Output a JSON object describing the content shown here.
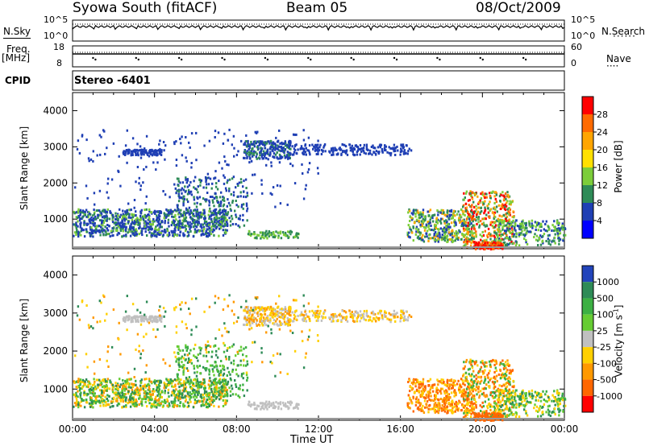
{
  "header": {
    "station": "Syowa South (fitACF)",
    "beam": "Beam 05",
    "date": "08/Oct/2009"
  },
  "top_panels": {
    "nsky_label": "N.Sky",
    "nsky_ticks": [
      "10^5",
      "10^0"
    ],
    "nsearch_label": "N.Search",
    "nsearch_ticks": [
      "10^5",
      "10^0"
    ],
    "freq_label_1": "Freq.",
    "freq_label_2": "[MHz]",
    "freq_ticks": [
      "18",
      "8"
    ],
    "nave_label": "Nave",
    "nave_ticks": [
      "60",
      "0"
    ],
    "cpid_label": "CPID",
    "cpid_value": "Stereo -6401"
  },
  "chart_data": [
    {
      "type": "heatmap",
      "quantity": "Power",
      "ylabel": "Slant Range [km]",
      "yticks": [
        "4000",
        "3000",
        "2000",
        "1000"
      ],
      "ylim": [
        180,
        4500
      ],
      "xlim_hours": [
        0,
        24
      ],
      "colorbar_label": "Power [dB]",
      "colorbar_ticks": [
        "28",
        "24",
        "20",
        "16",
        "12",
        "8",
        "4"
      ],
      "colorbar_colors": [
        "#ff0000",
        "#ff6a00",
        "#ffa500",
        "#ffe000",
        "#7ccd3a",
        "#2e8b57",
        "#1f3fb4",
        "#0000ff"
      ],
      "scatter_regions": [
        {
          "x0": 0.0,
          "x1": 7.5,
          "y0": 500,
          "y1": 1300,
          "level": 1
        },
        {
          "x0": 2.5,
          "x1": 8.0,
          "y0": 700,
          "y1": 1500,
          "level": 2
        },
        {
          "x0": 8.5,
          "x1": 10.5,
          "y0": 2700,
          "y1": 3000,
          "level": 1
        },
        {
          "x0": 2.5,
          "x1": 4.0,
          "y0": 2800,
          "y1": 2950,
          "level": 0
        },
        {
          "x0": 16.5,
          "x1": 19.5,
          "y0": 300,
          "y1": 1300,
          "level": 1
        },
        {
          "x0": 19.5,
          "x1": 21.0,
          "y0": 200,
          "y1": 700,
          "level": 3
        }
      ]
    },
    {
      "type": "heatmap",
      "quantity": "Velocity",
      "ylabel": "Slant Range [km]",
      "yticks": [
        "4000",
        "3000",
        "2000",
        "1000"
      ],
      "ylim": [
        180,
        4500
      ],
      "xlim_hours": [
        0,
        24
      ],
      "xticks": [
        "00:00",
        "04:00",
        "08:00",
        "12:00",
        "16:00",
        "20:00",
        "00:00"
      ],
      "xlabel": "Time UT",
      "colorbar_label": "Velocity [m s^-1]",
      "colorbar_ticks": [
        "1000",
        "500",
        "100",
        "25",
        "-25",
        "-100",
        "-500",
        "-1000"
      ],
      "colorbar_colors": [
        "#2244bb",
        "#2e8b57",
        "#3cb043",
        "#66cc33",
        "#c0c0c0",
        "#ffd000",
        "#ff9900",
        "#ff6600",
        "#ff0000"
      ]
    }
  ]
}
